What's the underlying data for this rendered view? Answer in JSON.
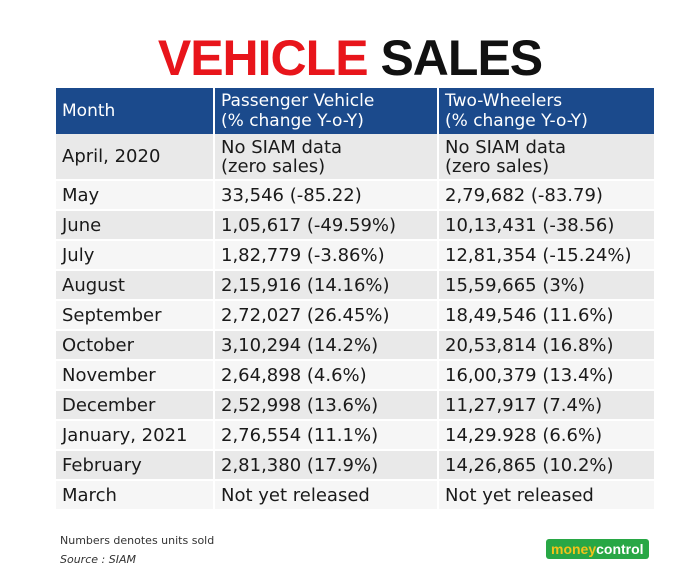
{
  "title": {
    "part1": "VEHICLE",
    "part2": "SALES"
  },
  "colors": {
    "title_red": "#e8151b",
    "header_bg": "#1b4a8c",
    "row_odd": "#e9e9e9",
    "row_even": "#f6f6f6",
    "logo_green": "#28a745",
    "logo_money": "#f2c31a"
  },
  "chart_data": {
    "type": "table",
    "columns": [
      "Month",
      "Passenger Vehicle\n(% change Y-o-Y)",
      "Two-Wheelers\n(% change Y-o-Y)"
    ],
    "header": {
      "month": "Month",
      "pv_line1": "Passenger Vehicle",
      "pv_line2": "(% change Y-o-Y)",
      "tw_line1": "Two-Wheelers",
      "tw_line2": "(% change Y-o-Y)"
    },
    "first_row": {
      "month": "April, 2020",
      "pv_line1": "No SIAM data",
      "pv_line2": "(zero sales)",
      "tw_line1": "No SIAM data",
      "tw_line2": "(zero sales)"
    },
    "rows": [
      {
        "month": "May",
        "pv": "33,546 (-85.22)",
        "tw": "2,79,682 (-83.79)"
      },
      {
        "month": "June",
        "pv": "1,05,617 (-49.59%)",
        "tw": "10,13,431 (-38.56)"
      },
      {
        "month": "July",
        "pv": "1,82,779 (-3.86%)",
        "tw": "12,81,354 (-15.24%)"
      },
      {
        "month": "August",
        "pv": "2,15,916 (14.16%)",
        "tw": "15,59,665 (3%)"
      },
      {
        "month": "September",
        "pv": "2,72,027 (26.45%)",
        "tw": "18,49,546 (11.6%)"
      },
      {
        "month": "October",
        "pv": "3,10,294 (14.2%)",
        "tw": "20,53,814 (16.8%)"
      },
      {
        "month": "November",
        "pv": "2,64,898 (4.6%)",
        "tw": "16,00,379 (13.4%)"
      },
      {
        "month": "December",
        "pv": "2,52,998 (13.6%)",
        "tw": "11,27,917 (7.4%)"
      },
      {
        "month": "January, 2021",
        "pv": "2,76,554 (11.1%)",
        "tw": "14,29.928 (6.6%)"
      },
      {
        "month": "February",
        "pv": "2,81,380 (17.9%)",
        "tw": "14,26,865 (10.2%)"
      },
      {
        "month": "March",
        "pv": "Not yet released",
        "tw": "Not yet released"
      }
    ]
  },
  "footnotes": {
    "units": "Numbers denotes units sold",
    "source": "Source : SIAM"
  },
  "logo": {
    "part1": "money",
    "part2": "control"
  }
}
